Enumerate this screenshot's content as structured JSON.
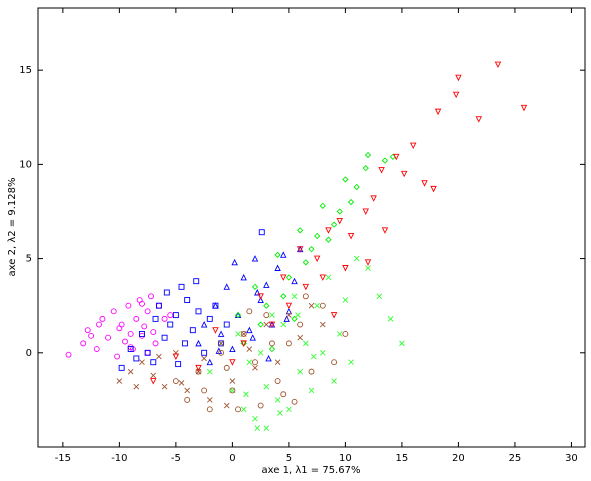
{
  "chart_data": {
    "type": "scatter",
    "xlabel": "axe 1, λ1 = 75.67%",
    "ylabel": "axe 2, λ2 = 9.128%",
    "xlim": [
      -17.2,
      31.2
    ],
    "ylim": [
      -5,
      18.3
    ],
    "xticks": [
      -15,
      -10,
      -5,
      0,
      5,
      10,
      15,
      20,
      25,
      30
    ],
    "yticks": [
      0,
      5,
      10,
      15
    ],
    "series": [
      {
        "color": "#ff00ff",
        "marker": "circle",
        "x": [
          -14.5,
          -13.2,
          -12.8,
          -12,
          -11.5,
          -11,
          -10.5,
          -10.2,
          -9.8,
          -9.5,
          -9.2,
          -9,
          -8.8,
          -8.5,
          -8.2,
          -8,
          -7.8,
          -7.5,
          -7.2,
          -7,
          -6.8,
          -6.5,
          -6,
          -5.5,
          -11.8,
          -10,
          -9,
          -8,
          -7.5,
          -12.5
        ],
        "y": [
          -0.1,
          0.5,
          1.2,
          0.2,
          1.8,
          0.8,
          2.2,
          -0.2,
          1.5,
          0.6,
          2.5,
          1.0,
          0.2,
          1.8,
          2.8,
          0.9,
          1.4,
          2.2,
          3.0,
          1.1,
          0.5,
          2.5,
          1.8,
          2.0,
          1.5,
          1.3,
          0.3,
          2.6,
          0.0,
          0.9
        ]
      },
      {
        "color": "#0000ff",
        "marker": "square",
        "x": [
          -9.8,
          -9,
          -8.5,
          -8,
          -7.5,
          -7,
          -6.5,
          -6,
          -5.8,
          -5.5,
          -5,
          -4.5,
          -4.2,
          -4,
          -3.5,
          -3,
          -2.5,
          -2,
          -1.5,
          -1,
          -0.5,
          2.6,
          -3.2,
          -6.8,
          -4.8
        ],
        "y": [
          -0.8,
          0.2,
          -0.3,
          1.0,
          0.0,
          -0.5,
          2.5,
          0.8,
          3.2,
          1.5,
          2.0,
          3.5,
          0.5,
          2.8,
          1.2,
          2.2,
          0.0,
          1.8,
          2.5,
          0.5,
          1.5,
          6.4,
          3.8,
          1.8,
          -0.6
        ]
      },
      {
        "color": "#0000ff",
        "marker": "triangle-up",
        "x": [
          -3,
          -2.5,
          -2,
          -1.5,
          -1,
          -0.5,
          0,
          0.5,
          1,
          1.5,
          2,
          2.5,
          3,
          3.5,
          4,
          4.5,
          5,
          5.5,
          6,
          1.8,
          3.2,
          4.8,
          0.2,
          -1.2,
          2.2
        ],
        "y": [
          0.5,
          1.5,
          -0.5,
          2.5,
          1,
          3.5,
          0.2,
          2,
          4,
          1.2,
          5,
          2.8,
          3.6,
          1.5,
          4.5,
          5.2,
          2.2,
          3.8,
          5.5,
          0.8,
          -0.3,
          1.8,
          4.8,
          0.1,
          3.2
        ]
      },
      {
        "color": "#00ee00",
        "marker": "diamond",
        "x": [
          12,
          13.5,
          14.2,
          11,
          10.5,
          9.5,
          9,
          8.5,
          8,
          7,
          6.5,
          6,
          5,
          4.5,
          4,
          3,
          2.5,
          2,
          1,
          0.5,
          10,
          11.8,
          7.5,
          5.5,
          3.5
        ],
        "y": [
          10.5,
          10.2,
          10.4,
          8.8,
          8,
          7.5,
          6.8,
          6,
          7.8,
          5.5,
          4.8,
          6.5,
          4,
          3,
          5.2,
          2.5,
          1.5,
          3.5,
          0.5,
          2,
          9.2,
          9.8,
          6.2,
          1.8,
          0.2
        ]
      },
      {
        "color": "#33ff33",
        "marker": "x",
        "x": [
          -2,
          -1,
          0,
          0.5,
          1,
          1.5,
          2,
          2.5,
          3,
          3.5,
          4,
          4.5,
          5,
          5.5,
          6,
          6.5,
          7,
          7.5,
          8,
          8.5,
          9,
          9.5,
          10,
          10.5,
          11,
          12,
          13,
          14,
          15,
          3,
          4.2,
          5.8,
          2.2,
          7.2,
          1.2
        ],
        "y": [
          -1,
          0.5,
          -2,
          1,
          -3,
          -0.5,
          -3.5,
          0,
          -4,
          2,
          -2.5,
          1.5,
          -3,
          3,
          -1,
          0.5,
          -2,
          2.5,
          0,
          4,
          -1.5,
          1,
          2.8,
          -0.5,
          5,
          4.5,
          3,
          1.8,
          0.5,
          -1.8,
          -3.2,
          2,
          -4,
          -0.2,
          -2.2
        ]
      },
      {
        "color": "#a0522d",
        "marker": "circle",
        "x": [
          -5,
          -4,
          -3,
          -2,
          -1,
          0,
          1,
          2,
          3,
          4,
          5,
          6,
          7,
          8,
          9,
          10,
          -2.5,
          0.5,
          2.5,
          4.5,
          6.5,
          -0.5,
          1.5,
          3.5,
          5.5
        ],
        "y": [
          -1.5,
          -2.5,
          -1,
          -3,
          0,
          -2,
          1,
          -0.5,
          2,
          -1.5,
          0.5,
          1.5,
          -1,
          2.5,
          -0.5,
          1,
          -2,
          -3,
          -2.8,
          -2.2,
          3,
          -0.8,
          2.2,
          0.5,
          -2.6
        ]
      },
      {
        "color": "#a0522d",
        "marker": "x",
        "x": [
          -10,
          -9,
          -8,
          -7,
          -6,
          -5,
          -4,
          -3,
          -2,
          -1,
          0,
          1,
          2,
          3,
          4,
          5,
          6,
          7,
          8,
          -8.5,
          -6.5,
          -4.5,
          -2.5,
          -0.5,
          1.5
        ],
        "y": [
          -1.5,
          -1,
          -0.5,
          -1.2,
          -1.8,
          0,
          -2,
          -1,
          -2.5,
          0.5,
          -1.5,
          1,
          -0.8,
          1.5,
          -0.5,
          2,
          0.8,
          2.5,
          1.5,
          -1.8,
          -0.2,
          -1.6,
          -0.3,
          -2.8,
          0.2
        ]
      },
      {
        "color": "#ff0000",
        "marker": "triangle-down",
        "x": [
          23.5,
          20,
          19.8,
          25.8,
          21.8,
          18.2,
          16,
          14.5,
          15.2,
          17,
          17.8,
          13.2,
          12.5,
          11.8,
          10.5,
          10,
          9.5,
          8.5,
          8,
          7.5,
          6.5,
          6,
          5,
          4.5,
          3.5,
          2.5,
          1,
          0,
          -1.5,
          -3,
          -5,
          -7,
          12,
          9,
          13.5
        ],
        "y": [
          15.3,
          14.6,
          13.7,
          13,
          12.4,
          12.8,
          11,
          10.4,
          9.5,
          9,
          8.7,
          9.7,
          8.2,
          7.5,
          6.2,
          4.5,
          7,
          6.5,
          4,
          5,
          3.5,
          5.5,
          2.5,
          4,
          1.5,
          3,
          0.5,
          -0.5,
          1.2,
          -0.8,
          -0.2,
          -1.5,
          4.8,
          2,
          6.5
        ]
      }
    ]
  }
}
